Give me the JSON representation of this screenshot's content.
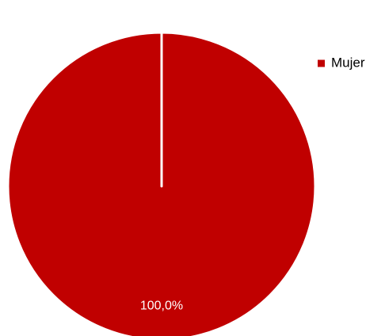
{
  "chart_data": {
    "type": "pie",
    "categories": [
      "Mujer"
    ],
    "values": [
      100
    ],
    "value_labels": [
      "100,0%"
    ],
    "colors": [
      "#c00000"
    ],
    "legend": "top-right"
  }
}
